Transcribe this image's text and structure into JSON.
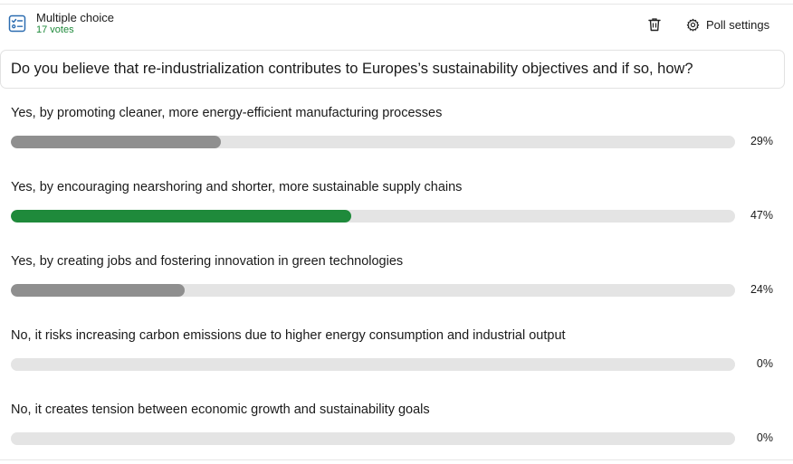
{
  "header": {
    "type_title": "Multiple choice",
    "vote_count": "17 votes",
    "settings_label": "Poll settings",
    "type_icon": "checklist-icon",
    "trash_icon": "trash-icon",
    "settings_icon": "gear-icon"
  },
  "question": "Do you believe that re-industrialization contributes to Europes’s sustainability objectives and if so, how?",
  "colors": {
    "leader": "#1f8a3b",
    "other": "#8f8f8f",
    "track": "#e4e4e4"
  },
  "options": [
    {
      "label": "Yes, by promoting cleaner, more energy-efficient manufacturing processes",
      "percent_text": "29%",
      "fraction": 0.29,
      "leader": false
    },
    {
      "label": "Yes, by encouraging nearshoring and shorter, more sustainable supply chains",
      "percent_text": "47%",
      "fraction": 0.47,
      "leader": true
    },
    {
      "label": "Yes, by creating jobs and fostering innovation in green technologies",
      "percent_text": "24%",
      "fraction": 0.24,
      "leader": false
    },
    {
      "label": "No, it risks increasing carbon emissions due to higher energy consumption and industrial output",
      "percent_text": "0%",
      "fraction": 0,
      "leader": false
    },
    {
      "label": "No, it creates tension between economic growth and sustainability goals",
      "percent_text": "0%",
      "fraction": 0,
      "leader": false
    }
  ]
}
